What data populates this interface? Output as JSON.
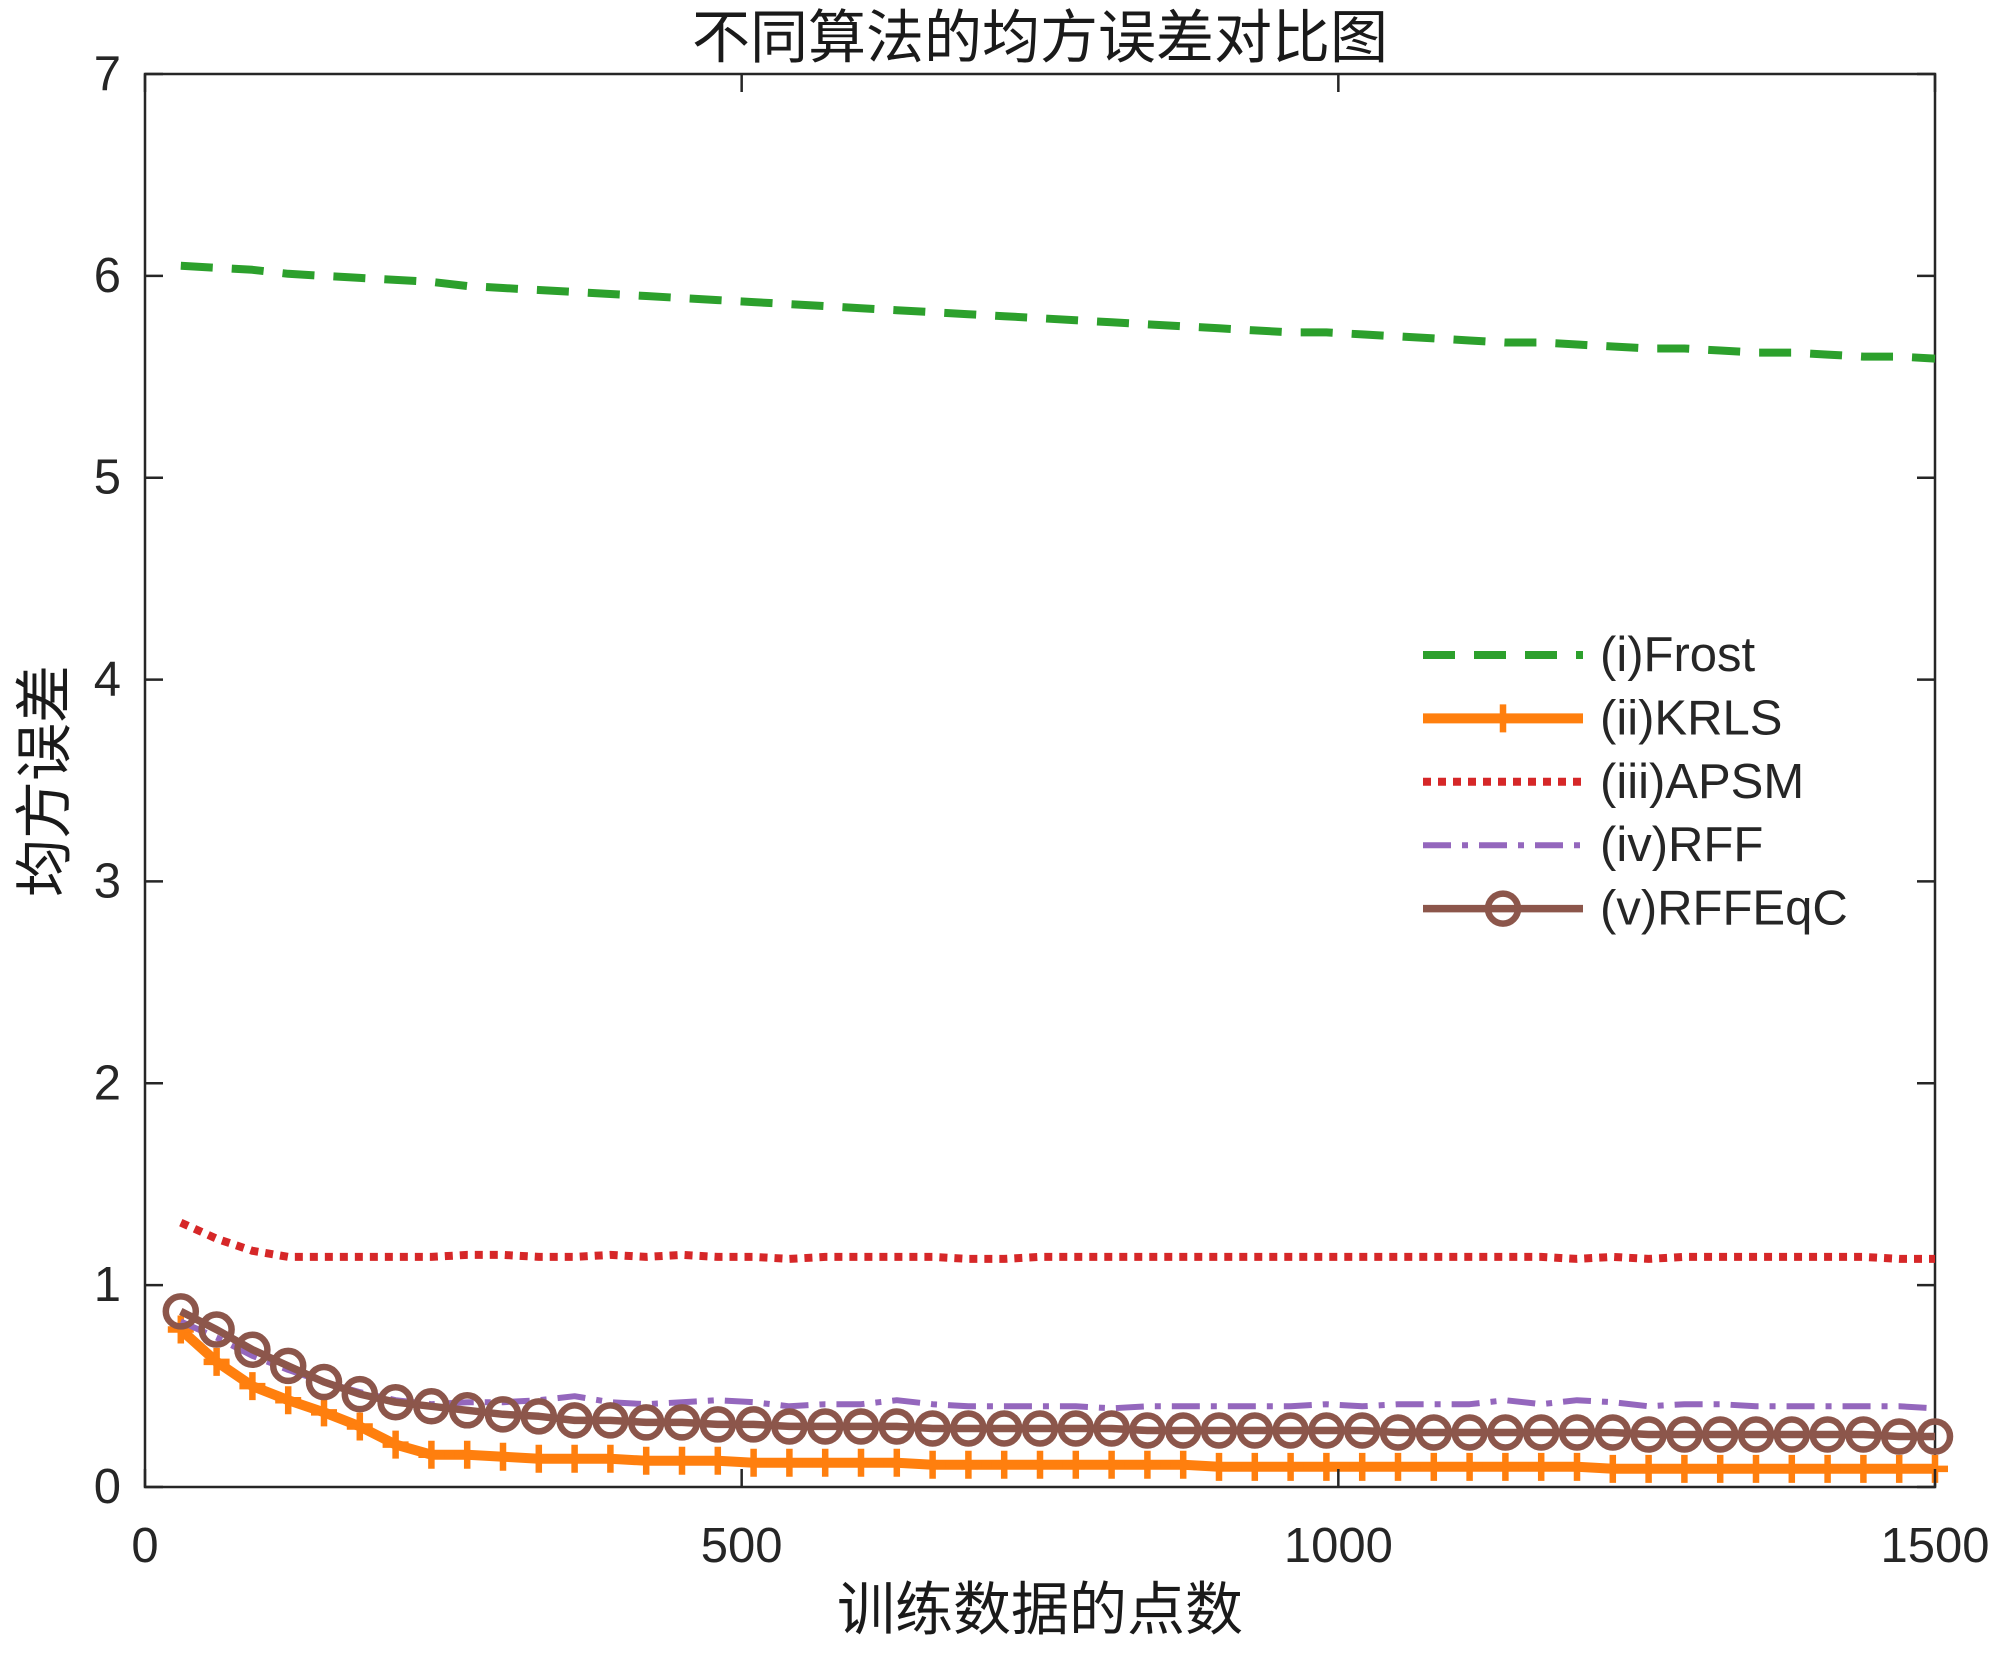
{
  "chart_data": {
    "type": "line",
    "title": "不同算法的均方误差对比图",
    "xlabel": "训练数据的点数",
    "ylabel": "均方误差",
    "xlim": [
      0,
      1500
    ],
    "ylim": [
      0,
      7
    ],
    "x_ticks": [
      0,
      500,
      1000,
      1500
    ],
    "y_ticks": [
      0,
      1,
      2,
      3,
      4,
      5,
      6,
      7
    ],
    "grid": false,
    "box": true,
    "legend_position": "right",
    "x": [
      30,
      60,
      90,
      120,
      150,
      180,
      210,
      240,
      270,
      300,
      330,
      360,
      390,
      420,
      450,
      480,
      510,
      540,
      570,
      600,
      630,
      660,
      690,
      720,
      750,
      780,
      810,
      840,
      870,
      900,
      930,
      960,
      990,
      1020,
      1050,
      1080,
      1110,
      1140,
      1170,
      1200,
      1230,
      1260,
      1290,
      1320,
      1350,
      1380,
      1410,
      1440,
      1470,
      1500
    ],
    "series": [
      {
        "name": "(i)Frost",
        "color": "#2ca02c",
        "line_style": "dashed",
        "marker": "none",
        "values": [
          6.05,
          6.04,
          6.03,
          6.01,
          6.0,
          5.99,
          5.98,
          5.97,
          5.95,
          5.94,
          5.93,
          5.92,
          5.91,
          5.9,
          5.89,
          5.88,
          5.87,
          5.86,
          5.85,
          5.84,
          5.83,
          5.82,
          5.81,
          5.8,
          5.79,
          5.78,
          5.77,
          5.76,
          5.75,
          5.74,
          5.73,
          5.72,
          5.72,
          5.71,
          5.7,
          5.69,
          5.68,
          5.67,
          5.67,
          5.66,
          5.65,
          5.64,
          5.64,
          5.63,
          5.62,
          5.62,
          5.61,
          5.6,
          5.6,
          5.59
        ]
      },
      {
        "name": "(ii)KRLS",
        "color": "#ff7f0e",
        "line_style": "solid",
        "marker": "plus",
        "values": [
          0.78,
          0.62,
          0.5,
          0.43,
          0.37,
          0.3,
          0.21,
          0.16,
          0.16,
          0.15,
          0.14,
          0.14,
          0.14,
          0.13,
          0.13,
          0.13,
          0.12,
          0.12,
          0.12,
          0.12,
          0.12,
          0.11,
          0.11,
          0.11,
          0.11,
          0.11,
          0.11,
          0.11,
          0.11,
          0.1,
          0.1,
          0.1,
          0.1,
          0.1,
          0.1,
          0.1,
          0.1,
          0.1,
          0.1,
          0.1,
          0.09,
          0.09,
          0.09,
          0.09,
          0.09,
          0.09,
          0.09,
          0.09,
          0.09,
          0.09
        ]
      },
      {
        "name": "(iii)APSM",
        "color": "#d62728",
        "line_style": "dotted",
        "marker": "none",
        "values": [
          1.31,
          1.23,
          1.17,
          1.14,
          1.14,
          1.14,
          1.14,
          1.14,
          1.15,
          1.15,
          1.14,
          1.14,
          1.15,
          1.14,
          1.15,
          1.14,
          1.14,
          1.13,
          1.14,
          1.14,
          1.14,
          1.14,
          1.13,
          1.13,
          1.14,
          1.14,
          1.14,
          1.14,
          1.14,
          1.14,
          1.14,
          1.14,
          1.14,
          1.14,
          1.14,
          1.14,
          1.14,
          1.14,
          1.14,
          1.13,
          1.14,
          1.13,
          1.14,
          1.14,
          1.14,
          1.14,
          1.14,
          1.14,
          1.13,
          1.13
        ]
      },
      {
        "name": "(iv)RFF",
        "color": "#9467bd",
        "line_style": "dash-dot",
        "marker": "none",
        "values": [
          0.82,
          0.74,
          0.65,
          0.58,
          0.52,
          0.47,
          0.43,
          0.41,
          0.42,
          0.42,
          0.43,
          0.45,
          0.42,
          0.41,
          0.42,
          0.43,
          0.42,
          0.4,
          0.41,
          0.41,
          0.43,
          0.41,
          0.4,
          0.4,
          0.4,
          0.4,
          0.39,
          0.4,
          0.4,
          0.4,
          0.4,
          0.4,
          0.41,
          0.4,
          0.41,
          0.41,
          0.41,
          0.43,
          0.41,
          0.43,
          0.42,
          0.4,
          0.41,
          0.41,
          0.4,
          0.4,
          0.4,
          0.4,
          0.4,
          0.39
        ]
      },
      {
        "name": "(v)RFFEqC",
        "color": "#8c564b",
        "line_style": "solid",
        "marker": "circle",
        "values": [
          0.87,
          0.78,
          0.68,
          0.6,
          0.52,
          0.46,
          0.42,
          0.4,
          0.38,
          0.36,
          0.35,
          0.33,
          0.33,
          0.32,
          0.32,
          0.31,
          0.31,
          0.3,
          0.3,
          0.3,
          0.3,
          0.29,
          0.29,
          0.29,
          0.29,
          0.29,
          0.29,
          0.28,
          0.28,
          0.28,
          0.28,
          0.28,
          0.28,
          0.28,
          0.27,
          0.27,
          0.27,
          0.27,
          0.27,
          0.27,
          0.27,
          0.26,
          0.26,
          0.26,
          0.26,
          0.26,
          0.26,
          0.26,
          0.25,
          0.25
        ]
      }
    ]
  }
}
